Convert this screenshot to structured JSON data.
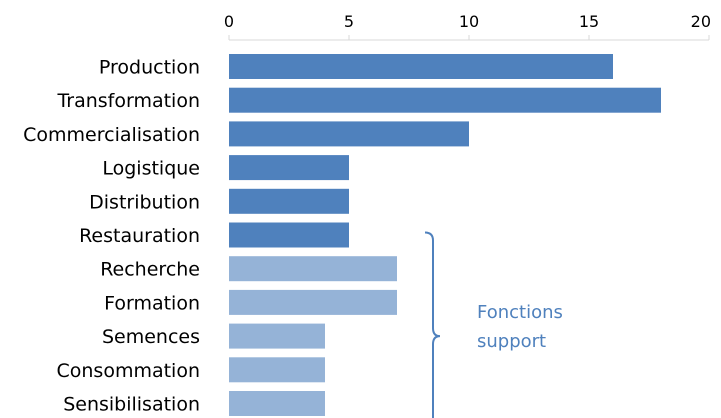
{
  "chart_data": {
    "type": "bar",
    "orientation": "horizontal",
    "title": "",
    "xlabel": "",
    "ylabel": "",
    "xlim": [
      0,
      20
    ],
    "x_ticks": [
      0,
      5,
      10,
      15,
      20
    ],
    "x_axis_position": "top",
    "grid": false,
    "legend": "none",
    "categories": [
      "Production",
      "Transformation",
      "Commercialisation",
      "Logistique",
      "Distribution",
      "Restauration",
      "Recherche",
      "Formation",
      "Semences",
      "Consommation",
      "Sensibilisation"
    ],
    "values": [
      16,
      18,
      10,
      5,
      5,
      5,
      7,
      7,
      4,
      4,
      4
    ],
    "bar_colors": [
      "#4f81bd",
      "#4f81bd",
      "#4f81bd",
      "#4f81bd",
      "#4f81bd",
      "#4f81bd",
      "#95b3d7",
      "#95b3d7",
      "#95b3d7",
      "#95b3d7",
      "#95b3d7"
    ],
    "annotation": {
      "line1": "Fonctions",
      "line2": "support",
      "color": "#4f81bd",
      "brace_from_category": "Restauration",
      "brace_to_category": "Sensibilisation"
    }
  }
}
